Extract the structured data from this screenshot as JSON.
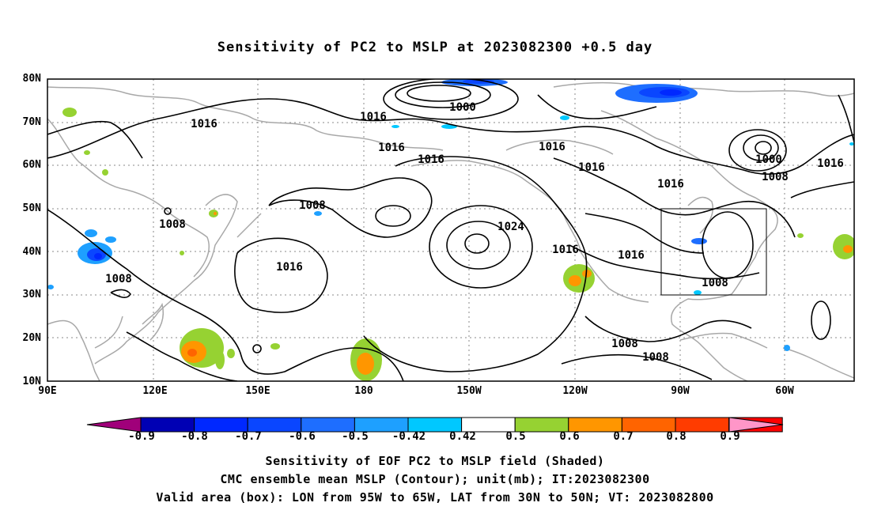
{
  "title": "Sensitivity of PC2 to MSLP at 2023082300 +0.5 day",
  "lat_labels": [
    "80N",
    "70N",
    "60N",
    "50N",
    "40N",
    "30N",
    "20N",
    "10N"
  ],
  "lon_labels": [
    "90E",
    "120E",
    "150E",
    "180",
    "150W",
    "120W",
    "90W",
    "60W"
  ],
  "contour_labels": [
    "1000",
    "1016",
    "1016",
    "1016",
    "1016",
    "1016",
    "1016",
    "1000",
    "1008",
    "1016",
    "1008",
    "1008",
    "1008",
    "1016",
    "1024",
    "1016",
    "1016",
    "1016",
    "1008",
    "1008",
    "1008"
  ],
  "colorbar": {
    "labels": [
      "-0.9",
      "-0.8",
      "-0.7",
      "-0.6",
      "-0.5",
      "-0.42",
      "0.42",
      "0.5",
      "0.6",
      "0.7",
      "0.8",
      "0.9"
    ],
    "colors": [
      "#a0007a",
      "#0000b4",
      "#0028ff",
      "#0a46ff",
      "#1e6eff",
      "#1ea0ff",
      "#00c8ff",
      "#ffffff",
      "#96d232",
      "#ff9600",
      "#ff6400",
      "#ff3c00",
      "#ff0000",
      "#ff96c8"
    ]
  },
  "footer": {
    "line1": "Sensitivity of EOF PC2 to MSLP field (Shaded)",
    "line2": "CMC ensemble mean MSLP (Contour); unit(mb); IT:2023082300",
    "line3": "Valid area (box): LON from 95W to 65W, LAT from 30N to 50N; VT: 2023082800"
  }
}
